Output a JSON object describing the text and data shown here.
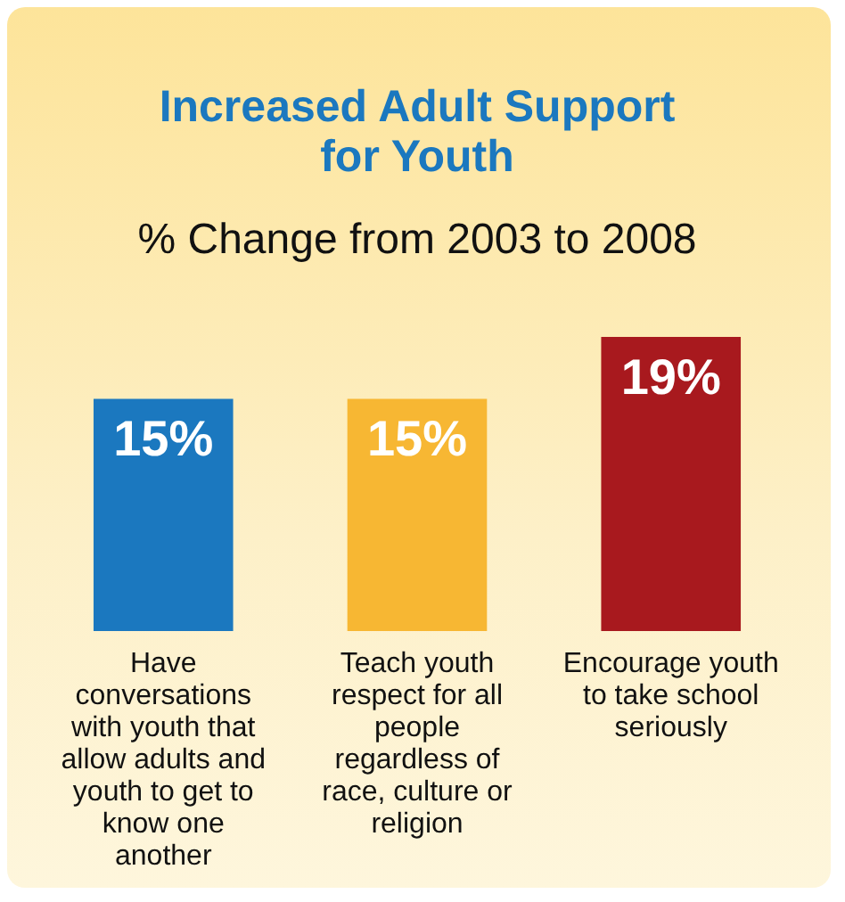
{
  "chart_data": {
    "type": "bar",
    "title": "Increased Adult Support for Youth",
    "subtitle": "% Change from 2003 to 2008",
    "categories": [
      "Have conversations with youth that allow adults and youth to get to know one another",
      "Teach youth respect for all people regardless of race, culture or religion",
      "Encourage youth to take school seriously"
    ],
    "values": [
      15,
      15,
      19
    ],
    "colors": [
      "#1b78bf",
      "#f7b733",
      "#a8191e"
    ],
    "value_labels": [
      "15%",
      "15%",
      "19%"
    ]
  }
}
